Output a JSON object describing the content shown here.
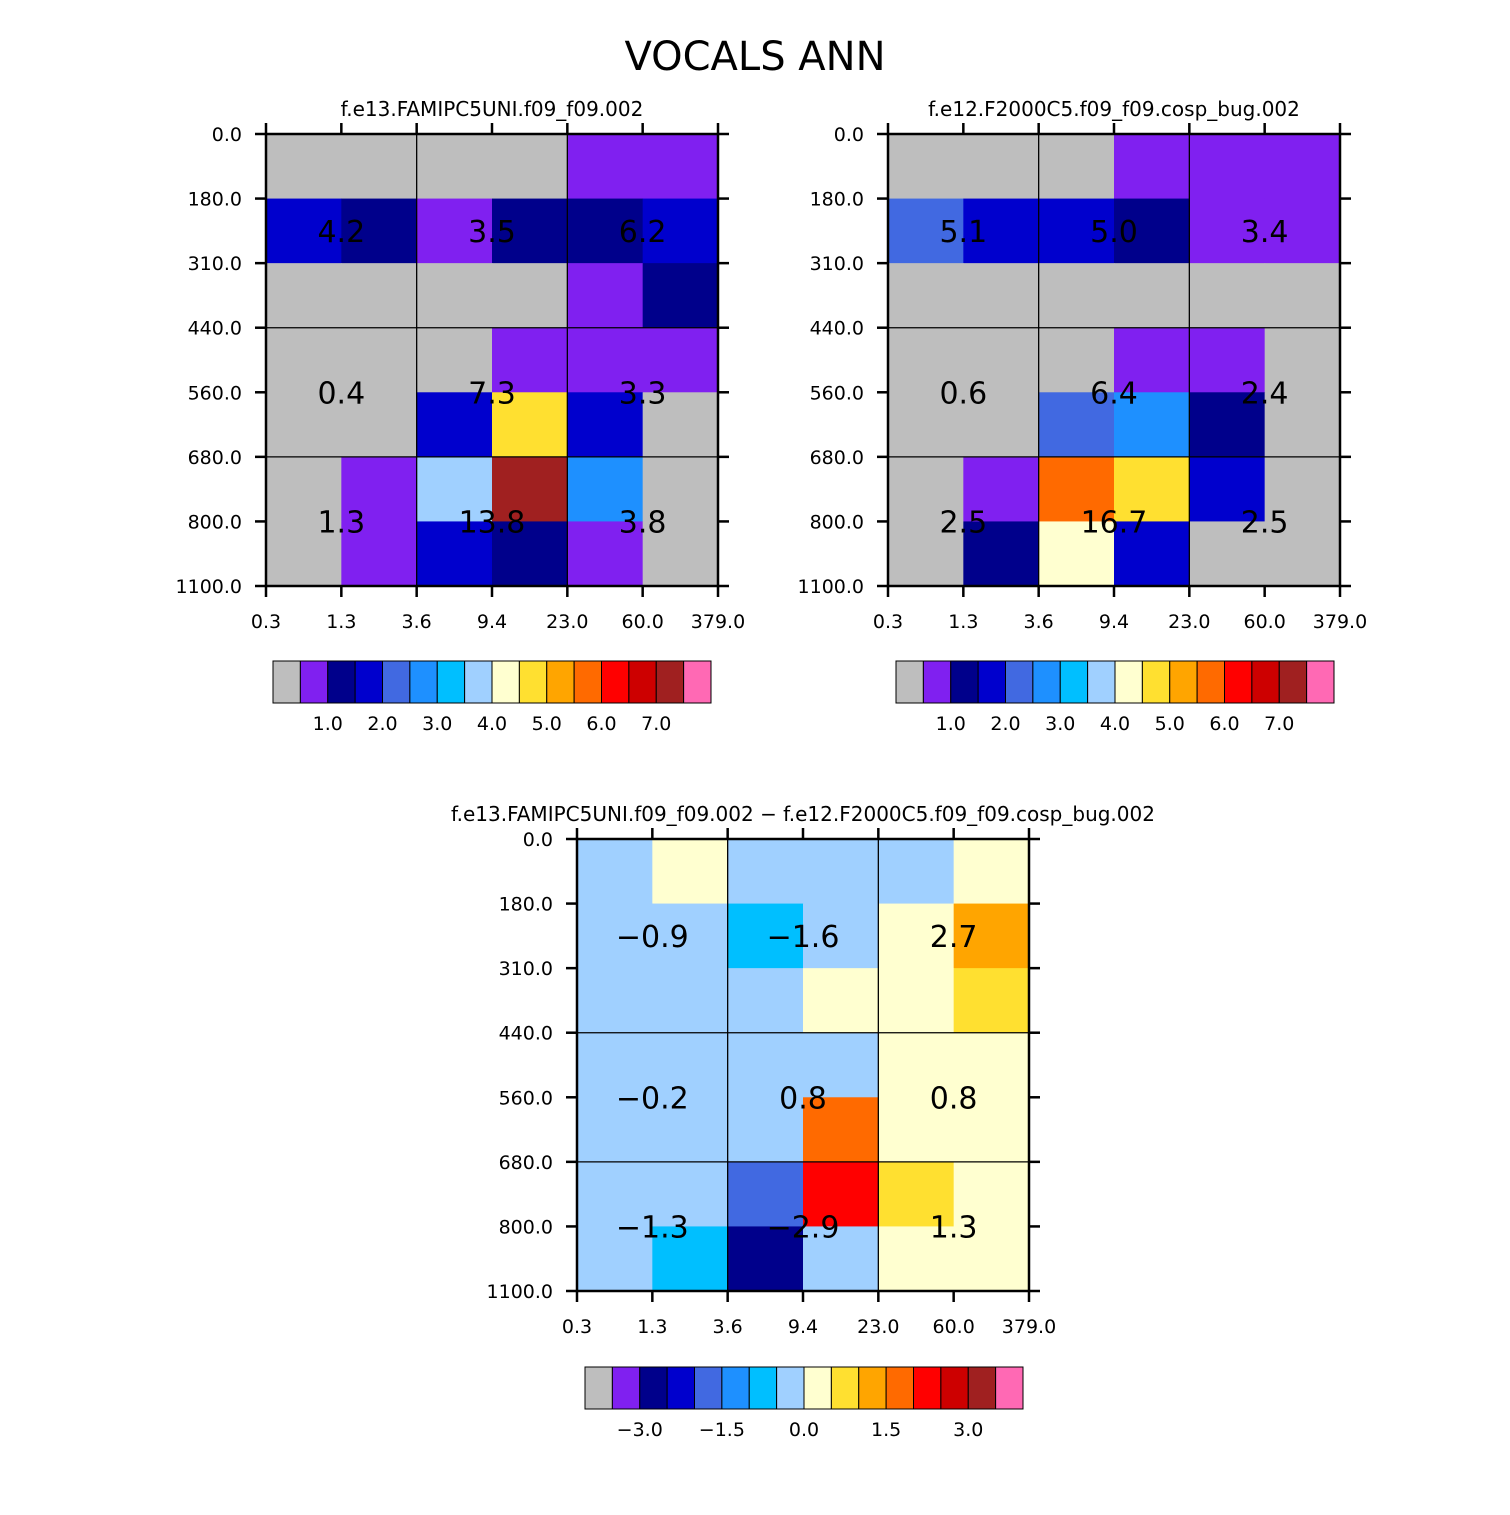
{
  "figure_title": "VOCALS ANN",
  "chart_data": [
    {
      "type": "heatmap",
      "title": "f.e13.FAMIPC5UNI.f09_f09.002",
      "x_tick_labels": [
        "0.3",
        "1.3",
        "3.6",
        "9.4",
        "23.0",
        "60.0",
        "379.0"
      ],
      "y_tick_labels": [
        "0.0",
        "180.0",
        "310.0",
        "440.0",
        "560.0",
        "680.0",
        "800.0",
        "1100.0"
      ],
      "cell_colors": [
        [
          "#bebebe",
          "#bebebe",
          "#bebebe",
          "#bebebe",
          "#8020f0",
          "#8020f0"
        ],
        [
          "#0000cd",
          "#00008b",
          "#8020f0",
          "#00008b",
          "#00008b",
          "#0000cd"
        ],
        [
          "#bebebe",
          "#bebebe",
          "#bebebe",
          "#bebebe",
          "#8020f0",
          "#00008b"
        ],
        [
          "#bebebe",
          "#bebebe",
          "#bebebe",
          "#8020f0",
          "#8020f0",
          "#8020f0"
        ],
        [
          "#bebebe",
          "#bebebe",
          "#0000cd",
          "#ffe030",
          "#0000cd",
          "#bebebe"
        ],
        [
          "#bebebe",
          "#8020f0",
          "#a0d0ff",
          "#a02020",
          "#1e90ff",
          "#bebebe"
        ],
        [
          "#bebebe",
          "#8020f0",
          "#0000cd",
          "#00008b",
          "#8020f0",
          "#bebebe"
        ]
      ],
      "group_sums": [
        [
          "4.2",
          "3.5",
          "6.2"
        ],
        [
          "0.4",
          "7.3",
          "3.3"
        ],
        [
          "1.3",
          "13.8",
          "3.8"
        ]
      ],
      "colorbar": {
        "colors": [
          "#bebebe",
          "#8020f0",
          "#00008b",
          "#0000cd",
          "#4169e1",
          "#1e90ff",
          "#00bfff",
          "#a0d0ff",
          "#ffffd0",
          "#ffe030",
          "#ffa500",
          "#ff6a00",
          "#ff0000",
          "#cd0000",
          "#a02020",
          "#ff69b4"
        ],
        "labels": [
          "1.0",
          "2.0",
          "3.0",
          "4.0",
          "5.0",
          "6.0",
          "7.0"
        ],
        "label_boundaries": [
          2,
          4,
          6,
          8,
          10,
          12,
          14
        ]
      }
    },
    {
      "type": "heatmap",
      "title": "f.e12.F2000C5.f09_f09.cosp_bug.002",
      "x_tick_labels": [
        "0.3",
        "1.3",
        "3.6",
        "9.4",
        "23.0",
        "60.0",
        "379.0"
      ],
      "y_tick_labels": [
        "0.0",
        "180.0",
        "310.0",
        "440.0",
        "560.0",
        "680.0",
        "800.0",
        "1100.0"
      ],
      "cell_colors": [
        [
          "#bebebe",
          "#bebebe",
          "#bebebe",
          "#8020f0",
          "#8020f0",
          "#8020f0"
        ],
        [
          "#4169e1",
          "#0000cd",
          "#0000cd",
          "#00008b",
          "#8020f0",
          "#8020f0"
        ],
        [
          "#bebebe",
          "#bebebe",
          "#bebebe",
          "#bebebe",
          "#bebebe",
          "#bebebe"
        ],
        [
          "#bebebe",
          "#bebebe",
          "#bebebe",
          "#8020f0",
          "#8020f0",
          "#bebebe"
        ],
        [
          "#bebebe",
          "#bebebe",
          "#4169e1",
          "#1e90ff",
          "#00008b",
          "#bebebe"
        ],
        [
          "#bebebe",
          "#8020f0",
          "#ff6a00",
          "#ffe030",
          "#0000cd",
          "#bebebe"
        ],
        [
          "#bebebe",
          "#00008b",
          "#ffffd0",
          "#0000cd",
          "#bebebe",
          "#bebebe"
        ]
      ],
      "group_sums": [
        [
          "5.1",
          "5.0",
          "3.4"
        ],
        [
          "0.6",
          "6.4",
          "2.4"
        ],
        [
          "2.5",
          "16.7",
          "2.5"
        ]
      ],
      "colorbar": {
        "colors": [
          "#bebebe",
          "#8020f0",
          "#00008b",
          "#0000cd",
          "#4169e1",
          "#1e90ff",
          "#00bfff",
          "#a0d0ff",
          "#ffffd0",
          "#ffe030",
          "#ffa500",
          "#ff6a00",
          "#ff0000",
          "#cd0000",
          "#a02020",
          "#ff69b4"
        ],
        "labels": [
          "1.0",
          "2.0",
          "3.0",
          "4.0",
          "5.0",
          "6.0",
          "7.0"
        ],
        "label_boundaries": [
          2,
          4,
          6,
          8,
          10,
          12,
          14
        ]
      }
    },
    {
      "type": "heatmap",
      "title": "f.e13.FAMIPC5UNI.f09_f09.002 − f.e12.F2000C5.f09_f09.cosp_bug.002",
      "x_tick_labels": [
        "0.3",
        "1.3",
        "3.6",
        "9.4",
        "23.0",
        "60.0",
        "379.0"
      ],
      "y_tick_labels": [
        "0.0",
        "180.0",
        "310.0",
        "440.0",
        "560.0",
        "680.0",
        "800.0",
        "1100.0"
      ],
      "cell_colors": [
        [
          "#a0d0ff",
          "#ffffd0",
          "#a0d0ff",
          "#a0d0ff",
          "#a0d0ff",
          "#ffffd0"
        ],
        [
          "#a0d0ff",
          "#a0d0ff",
          "#00bfff",
          "#a0d0ff",
          "#ffffd0",
          "#ffa500"
        ],
        [
          "#a0d0ff",
          "#a0d0ff",
          "#a0d0ff",
          "#ffffd0",
          "#ffffd0",
          "#ffe030"
        ],
        [
          "#a0d0ff",
          "#a0d0ff",
          "#a0d0ff",
          "#a0d0ff",
          "#ffffd0",
          "#ffffd0"
        ],
        [
          "#a0d0ff",
          "#a0d0ff",
          "#a0d0ff",
          "#ff6a00",
          "#ffffd0",
          "#ffffd0"
        ],
        [
          "#a0d0ff",
          "#a0d0ff",
          "#4169e1",
          "#ff0000",
          "#ffe030",
          "#ffffd0"
        ],
        [
          "#a0d0ff",
          "#00bfff",
          "#00008b",
          "#a0d0ff",
          "#ffffd0",
          "#ffffd0"
        ]
      ],
      "group_sums": [
        [
          "−0.9",
          "−1.6",
          "2.7"
        ],
        [
          "−0.2",
          "0.8",
          "0.8"
        ],
        [
          "−1.3",
          "−2.9",
          "1.3"
        ]
      ],
      "colorbar": {
        "colors": [
          "#bebebe",
          "#8020f0",
          "#00008b",
          "#0000cd",
          "#4169e1",
          "#1e90ff",
          "#00bfff",
          "#a0d0ff",
          "#ffffd0",
          "#ffe030",
          "#ffa500",
          "#ff6a00",
          "#ff0000",
          "#cd0000",
          "#a02020",
          "#ff69b4"
        ],
        "labels": [
          "−3.0",
          "−1.5",
          "0.0",
          "1.5",
          "3.0"
        ],
        "label_boundaries": [
          2,
          5,
          8,
          11,
          14
        ]
      }
    }
  ]
}
